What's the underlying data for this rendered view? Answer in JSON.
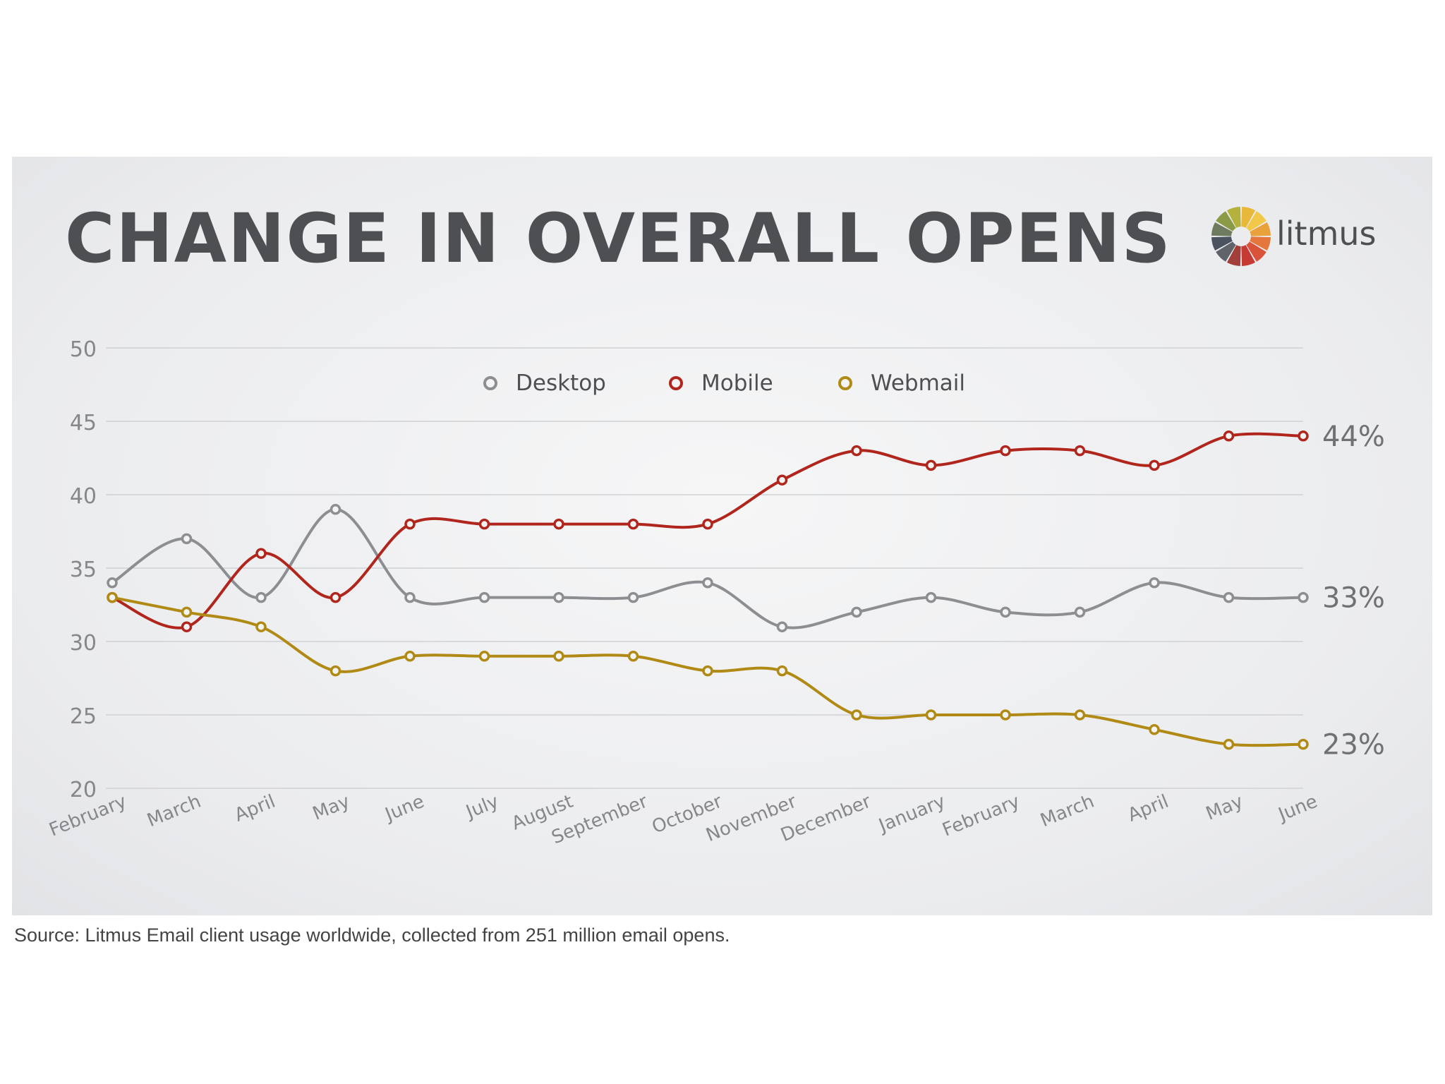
{
  "chart_data": {
    "type": "line",
    "title": "CHANGE IN OVERALL OPENS",
    "categories": [
      "February",
      "March",
      "April",
      "May",
      "June",
      "July",
      "August",
      "September",
      "October",
      "November",
      "December",
      "January",
      "February",
      "March",
      "April",
      "May",
      "June"
    ],
    "ylim": [
      20,
      50
    ],
    "yticks": [
      "50",
      "45",
      "40",
      "35",
      "30",
      "25",
      "20"
    ],
    "grid": true,
    "legend_position": "top-center",
    "series": [
      {
        "name": "Desktop",
        "color": "#8c8e92",
        "values": [
          34,
          37,
          33,
          39,
          33,
          33,
          33,
          33,
          34,
          31,
          32,
          33,
          32,
          32,
          34,
          33,
          33
        ],
        "end_label": "33%"
      },
      {
        "name": "Mobile",
        "color": "#b0261c",
        "values": [
          33,
          31,
          36,
          33,
          38,
          38,
          38,
          38,
          38,
          41,
          43,
          42,
          43,
          43,
          42,
          44,
          44
        ],
        "end_label": "44%"
      },
      {
        "name": "Webmail",
        "color": "#b08a14",
        "values": [
          33,
          32,
          31,
          28,
          29,
          29,
          29,
          29,
          28,
          28,
          25,
          25,
          25,
          25,
          24,
          23,
          23
        ],
        "end_label": "23%"
      }
    ]
  },
  "brand": {
    "name": "litmus",
    "colors": [
      "#e8b83a",
      "#f2c84b",
      "#e9a13b",
      "#e5773c",
      "#d9533b",
      "#c53b33",
      "#a33f3a",
      "#5f646b",
      "#4b5360",
      "#6e7b5e",
      "#8a9a47",
      "#b4b23c"
    ]
  },
  "source_note": "Source: Litmus Email client usage worldwide, collected from 251 million email opens."
}
